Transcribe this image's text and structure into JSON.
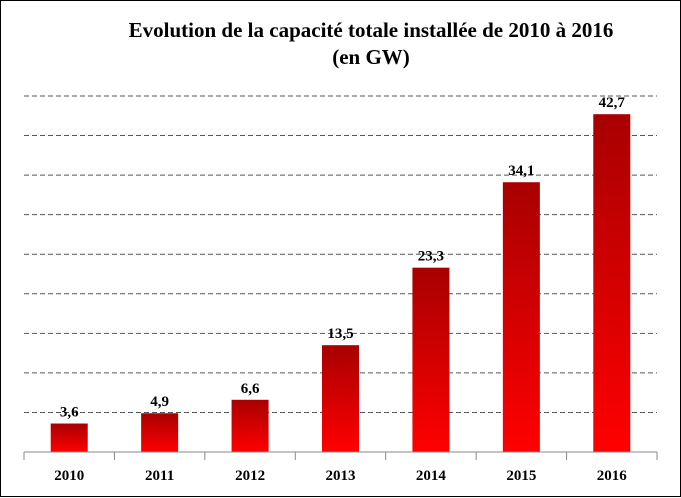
{
  "chart_data": {
    "type": "bar",
    "title": "Evolution de la capacité totale installée de 2010 à 2016",
    "subtitle": "(en GW)",
    "categories": [
      "2010",
      "2011",
      "2012",
      "2013",
      "2014",
      "2015",
      "2016"
    ],
    "values": [
      3.6,
      4.9,
      6.6,
      13.5,
      23.3,
      34.1,
      42.7
    ],
    "value_labels": [
      "3,6",
      "4,9",
      "6,6",
      "13,5",
      "23,3",
      "34,1",
      "42,7"
    ],
    "xlabel": "",
    "ylabel": "",
    "ylim": [
      0,
      45
    ],
    "grid": true,
    "legend": "none",
    "colors": {
      "bar_top": "#a80000",
      "bar_bottom": "#ff0000",
      "grid": "#555555"
    }
  }
}
